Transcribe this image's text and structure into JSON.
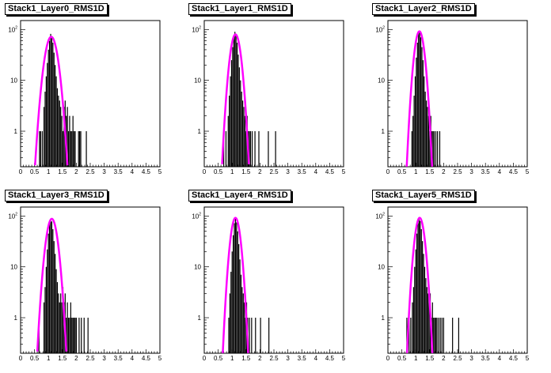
{
  "chart_data": [
    {
      "type": "histogram",
      "title": "Stack1_Layer0_RMS1D",
      "log_y": true,
      "xlim": [
        0,
        5
      ],
      "ylim": [
        0.2,
        150
      ],
      "x_ticks": [
        "0",
        "0.5",
        "1",
        "1.5",
        "2",
        "2.5",
        "3",
        "3.5",
        "4",
        "4.5",
        "5"
      ],
      "y_ticks": [
        {
          "base": "1",
          "exp": ""
        },
        {
          "base": "10",
          "exp": ""
        },
        {
          "base": "10",
          "exp": "2"
        }
      ],
      "bars": [
        [
          0.68,
          1
        ],
        [
          0.72,
          1
        ],
        [
          0.78,
          1
        ],
        [
          0.84,
          3
        ],
        [
          0.88,
          6
        ],
        [
          0.92,
          12
        ],
        [
          0.96,
          22
        ],
        [
          1.0,
          40
        ],
        [
          1.04,
          60
        ],
        [
          1.08,
          82
        ],
        [
          1.12,
          70
        ],
        [
          1.16,
          55
        ],
        [
          1.2,
          35
        ],
        [
          1.24,
          20
        ],
        [
          1.28,
          12
        ],
        [
          1.32,
          7
        ],
        [
          1.36,
          5
        ],
        [
          1.4,
          4
        ],
        [
          1.44,
          3
        ],
        [
          1.48,
          2
        ],
        [
          1.52,
          1
        ],
        [
          1.56,
          3
        ],
        [
          1.6,
          4
        ],
        [
          1.64,
          2
        ],
        [
          1.68,
          3
        ],
        [
          1.72,
          1
        ],
        [
          1.76,
          2
        ],
        [
          1.8,
          1
        ],
        [
          1.84,
          1
        ],
        [
          1.88,
          2
        ],
        [
          1.92,
          1
        ],
        [
          1.96,
          1
        ],
        [
          2.08,
          1
        ],
        [
          2.12,
          1
        ],
        [
          2.16,
          1
        ],
        [
          2.36,
          1
        ]
      ],
      "fit": {
        "series": "gaussian fit",
        "amplitude": 72,
        "mean": 1.1,
        "sigma": 0.17,
        "color": "#ff00ff"
      }
    },
    {
      "type": "histogram",
      "title": "Stack1_Layer1_RMS1D",
      "log_y": true,
      "xlim": [
        0,
        5
      ],
      "ylim": [
        0.2,
        150
      ],
      "x_ticks": [
        "0",
        "0.5",
        "1",
        "1.5",
        "2",
        "2.5",
        "3",
        "3.5",
        "4",
        "4.5",
        "5"
      ],
      "y_ticks": [
        {
          "base": "1",
          "exp": ""
        },
        {
          "base": "10",
          "exp": ""
        },
        {
          "base": "10",
          "exp": "2"
        }
      ],
      "bars": [
        [
          0.7,
          1
        ],
        [
          0.78,
          1
        ],
        [
          0.86,
          2
        ],
        [
          0.9,
          5
        ],
        [
          0.94,
          12
        ],
        [
          0.98,
          25
        ],
        [
          1.02,
          45
        ],
        [
          1.06,
          70
        ],
        [
          1.1,
          90
        ],
        [
          1.14,
          75
        ],
        [
          1.18,
          55
        ],
        [
          1.22,
          32
        ],
        [
          1.26,
          18
        ],
        [
          1.3,
          10
        ],
        [
          1.34,
          6
        ],
        [
          1.38,
          4
        ],
        [
          1.42,
          3
        ],
        [
          1.46,
          2
        ],
        [
          1.5,
          1
        ],
        [
          1.54,
          2
        ],
        [
          1.58,
          1
        ],
        [
          1.62,
          1
        ],
        [
          1.66,
          1
        ],
        [
          1.72,
          1
        ],
        [
          1.82,
          1
        ],
        [
          1.96,
          1
        ],
        [
          2.3,
          1
        ],
        [
          2.56,
          1
        ]
      ],
      "fit": {
        "series": "gaussian fit",
        "amplitude": 80,
        "mean": 1.12,
        "sigma": 0.14,
        "color": "#ff00ff"
      }
    },
    {
      "type": "histogram",
      "title": "Stack1_Layer2_RMS1D",
      "log_y": true,
      "xlim": [
        0,
        5
      ],
      "ylim": [
        0.2,
        150
      ],
      "x_ticks": [
        "0",
        "0.5",
        "1",
        "1.5",
        "2",
        "2.5",
        "3",
        "3.5",
        "4",
        "4.5",
        "5"
      ],
      "y_ticks": [
        {
          "base": "1",
          "exp": ""
        },
        {
          "base": "10",
          "exp": ""
        },
        {
          "base": "10",
          "exp": "2"
        }
      ],
      "bars": [
        [
          0.86,
          1
        ],
        [
          0.9,
          2
        ],
        [
          0.94,
          5
        ],
        [
          0.98,
          12
        ],
        [
          1.02,
          28
        ],
        [
          1.06,
          55
        ],
        [
          1.1,
          85
        ],
        [
          1.14,
          92
        ],
        [
          1.18,
          70
        ],
        [
          1.22,
          45
        ],
        [
          1.26,
          25
        ],
        [
          1.3,
          12
        ],
        [
          1.34,
          6
        ],
        [
          1.38,
          4
        ],
        [
          1.42,
          3
        ],
        [
          1.46,
          2
        ],
        [
          1.5,
          1
        ],
        [
          1.54,
          2
        ],
        [
          1.58,
          1
        ],
        [
          1.62,
          1
        ],
        [
          1.66,
          1
        ],
        [
          1.72,
          1
        ],
        [
          1.78,
          1
        ],
        [
          1.86,
          1
        ]
      ],
      "fit": {
        "series": "gaussian fit",
        "amplitude": 92,
        "mean": 1.13,
        "sigma": 0.13,
        "color": "#ff00ff"
      }
    },
    {
      "type": "histogram",
      "title": "Stack1_Layer3_RMS1D",
      "log_y": true,
      "xlim": [
        0,
        5
      ],
      "ylim": [
        0.2,
        150
      ],
      "x_ticks": [
        "0",
        "0.5",
        "1",
        "1.5",
        "2",
        "2.5",
        "3",
        "3.5",
        "4",
        "4.5",
        "5"
      ],
      "y_ticks": [
        {
          "base": "1",
          "exp": ""
        },
        {
          "base": "10",
          "exp": ""
        },
        {
          "base": "10",
          "exp": "2"
        }
      ],
      "bars": [
        [
          0.66,
          1
        ],
        [
          0.84,
          2
        ],
        [
          0.88,
          4
        ],
        [
          0.92,
          10
        ],
        [
          0.96,
          22
        ],
        [
          1.0,
          45
        ],
        [
          1.04,
          70
        ],
        [
          1.08,
          88
        ],
        [
          1.12,
          78
        ],
        [
          1.16,
          55
        ],
        [
          1.2,
          32
        ],
        [
          1.24,
          18
        ],
        [
          1.28,
          9
        ],
        [
          1.32,
          5
        ],
        [
          1.36,
          3
        ],
        [
          1.4,
          2
        ],
        [
          1.44,
          3
        ],
        [
          1.48,
          2
        ],
        [
          1.52,
          4
        ],
        [
          1.56,
          2
        ],
        [
          1.6,
          3
        ],
        [
          1.64,
          1
        ],
        [
          1.68,
          2
        ],
        [
          1.72,
          1
        ],
        [
          1.76,
          1
        ],
        [
          1.8,
          2
        ],
        [
          1.84,
          1
        ],
        [
          1.88,
          1
        ],
        [
          1.92,
          1
        ],
        [
          1.96,
          1
        ],
        [
          2.0,
          1
        ],
        [
          2.1,
          1
        ],
        [
          2.18,
          1
        ],
        [
          2.28,
          1
        ],
        [
          2.42,
          1
        ]
      ],
      "fit": {
        "series": "gaussian fit",
        "amplitude": 88,
        "mean": 1.12,
        "sigma": 0.15,
        "color": "#ff00ff"
      }
    },
    {
      "type": "histogram",
      "title": "Stack1_Layer4_RMS1D",
      "log_y": true,
      "xlim": [
        0,
        5
      ],
      "ylim": [
        0.2,
        150
      ],
      "x_ticks": [
        "0",
        "0.5",
        "1",
        "1.5",
        "2",
        "2.5",
        "3",
        "3.5",
        "4",
        "4.5",
        "5"
      ],
      "y_ticks": [
        {
          "base": "1",
          "exp": ""
        },
        {
          "base": "10",
          "exp": ""
        },
        {
          "base": "10",
          "exp": "2"
        }
      ],
      "bars": [
        [
          0.88,
          1
        ],
        [
          0.92,
          3
        ],
        [
          0.96,
          8
        ],
        [
          1.0,
          20
        ],
        [
          1.04,
          42
        ],
        [
          1.08,
          72
        ],
        [
          1.12,
          92
        ],
        [
          1.16,
          75
        ],
        [
          1.2,
          50
        ],
        [
          1.24,
          28
        ],
        [
          1.28,
          14
        ],
        [
          1.32,
          7
        ],
        [
          1.36,
          4
        ],
        [
          1.4,
          3
        ],
        [
          1.44,
          2
        ],
        [
          1.48,
          1
        ],
        [
          1.52,
          2
        ],
        [
          1.56,
          1
        ],
        [
          1.62,
          1
        ],
        [
          1.7,
          1
        ],
        [
          1.84,
          1
        ],
        [
          2.02,
          1
        ],
        [
          2.32,
          1
        ]
      ],
      "fit": {
        "series": "gaussian fit",
        "amplitude": 92,
        "mean": 1.12,
        "sigma": 0.13,
        "color": "#ff00ff"
      }
    },
    {
      "type": "histogram",
      "title": "Stack1_Layer5_RMS1D",
      "log_y": true,
      "xlim": [
        0,
        5
      ],
      "ylim": [
        0.2,
        150
      ],
      "x_ticks": [
        "0",
        "0.5",
        "1",
        "1.5",
        "2",
        "2.5",
        "3",
        "3.5",
        "4",
        "4.5",
        "5"
      ],
      "y_ticks": [
        {
          "base": "1",
          "exp": ""
        },
        {
          "base": "10",
          "exp": ""
        },
        {
          "base": "10",
          "exp": "2"
        }
      ],
      "bars": [
        [
          0.68,
          1
        ],
        [
          0.76,
          1
        ],
        [
          0.82,
          1
        ],
        [
          0.88,
          2
        ],
        [
          0.92,
          4
        ],
        [
          0.96,
          10
        ],
        [
          1.0,
          22
        ],
        [
          1.04,
          45
        ],
        [
          1.08,
          72
        ],
        [
          1.12,
          95
        ],
        [
          1.16,
          80
        ],
        [
          1.2,
          55
        ],
        [
          1.24,
          32
        ],
        [
          1.28,
          18
        ],
        [
          1.32,
          10
        ],
        [
          1.36,
          6
        ],
        [
          1.4,
          4
        ],
        [
          1.44,
          3
        ],
        [
          1.48,
          2
        ],
        [
          1.52,
          3
        ],
        [
          1.56,
          1
        ],
        [
          1.6,
          2
        ],
        [
          1.64,
          1
        ],
        [
          1.68,
          1
        ],
        [
          1.72,
          1
        ],
        [
          1.76,
          1
        ],
        [
          1.82,
          1
        ],
        [
          1.88,
          1
        ],
        [
          1.94,
          1
        ],
        [
          2.0,
          1
        ],
        [
          2.32,
          1
        ],
        [
          2.54,
          1
        ]
      ],
      "fit": {
        "series": "gaussian fit",
        "amplitude": 92,
        "mean": 1.14,
        "sigma": 0.13,
        "color": "#ff00ff"
      }
    }
  ]
}
